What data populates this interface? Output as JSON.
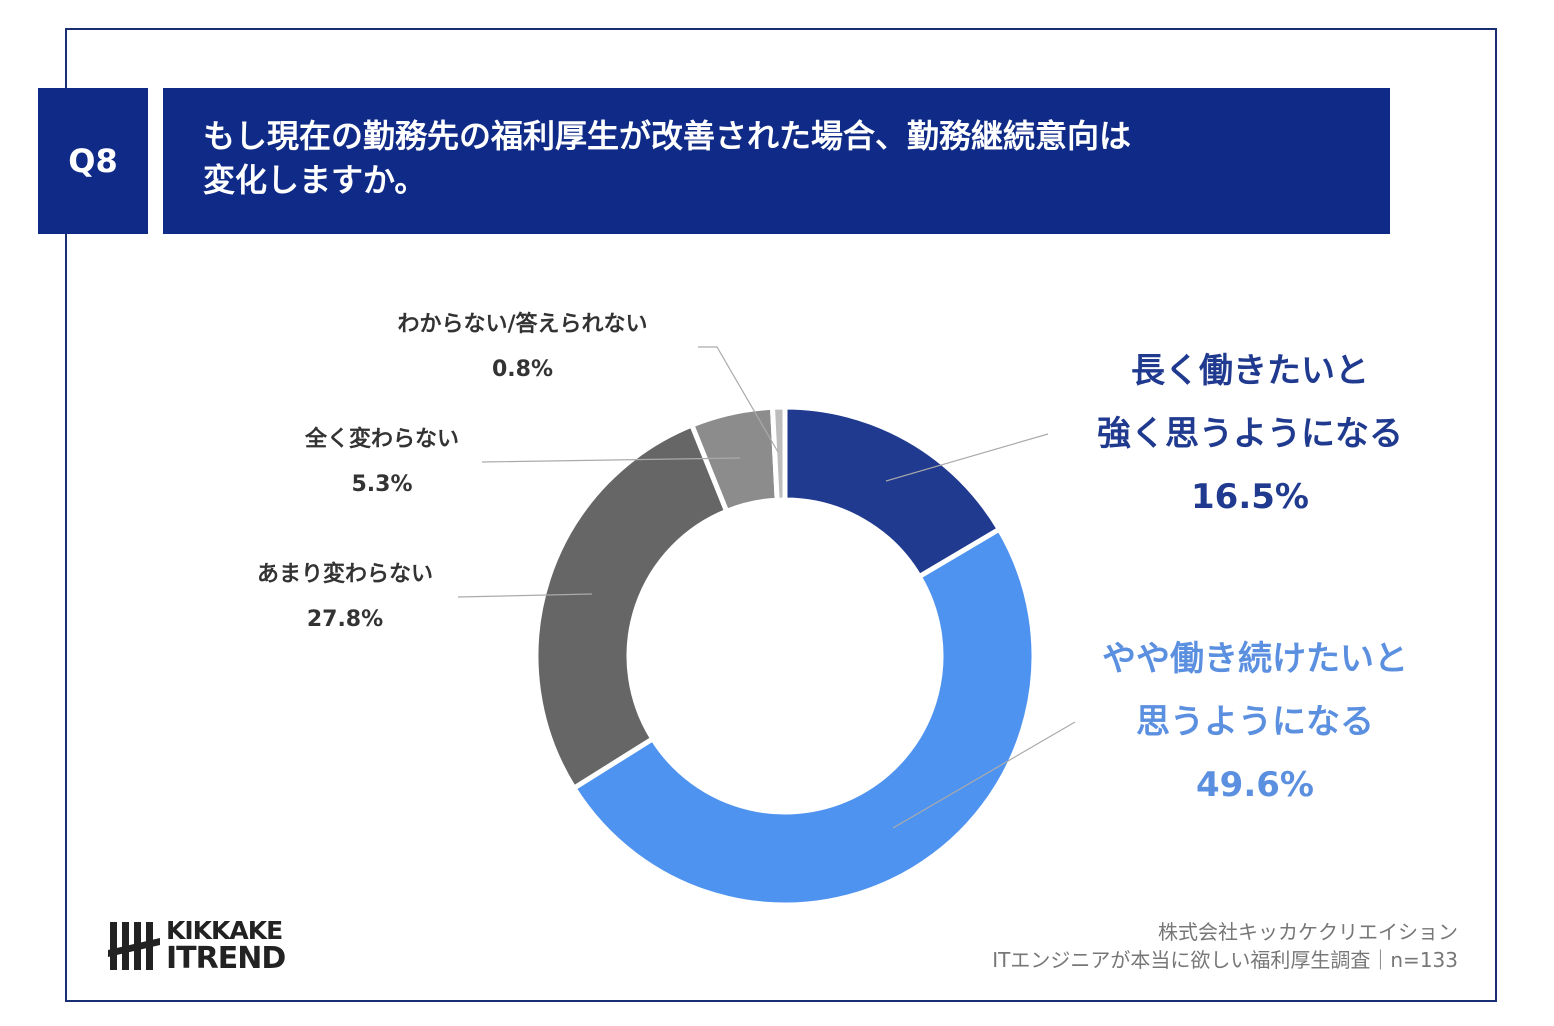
{
  "header": {
    "question_no": "Q8",
    "title_line1": "もし現在の勤務先の福利厚生が改善された場合、勤務継続意向は",
    "title_line2": "変化しますか。"
  },
  "chart_data": {
    "type": "pie",
    "variant": "donut",
    "title": "もし現在の勤務先の福利厚生が改善された場合、勤務継続意向は変化しますか。",
    "categories": [
      "長く働きたいと強く思うようになる",
      "やや働き続けたいと思うようになる",
      "あまり変わらない",
      "全く変わらない",
      "わからない/答えられない"
    ],
    "values": [
      16.5,
      49.6,
      27.8,
      5.3,
      0.8
    ],
    "colors": [
      "#1f3a8f",
      "#4f93f0",
      "#666666",
      "#8c8c8c",
      "#bdbdbd"
    ],
    "labels": [
      {
        "lines": [
          "長く働きたいと",
          "強く思うようになる"
        ],
        "value": "16.5%"
      },
      {
        "lines": [
          "やや働き続けたいと",
          "思うようになる"
        ],
        "value": "49.6%"
      },
      {
        "lines": [
          "あまり変わらない"
        ],
        "value": "27.8%"
      },
      {
        "lines": [
          "全く変わらない"
        ],
        "value": "5.3%"
      },
      {
        "lines": [
          "わからない/答えられない"
        ],
        "value": "0.8%"
      }
    ]
  },
  "footer": {
    "logo_line1": "KIKKAKE",
    "logo_line2": "ITREND",
    "source_line1": "株式会社キッカケクリエイション",
    "source_line2": "ITエンジニアが本当に欲しい福利厚生調査｜n=133"
  }
}
